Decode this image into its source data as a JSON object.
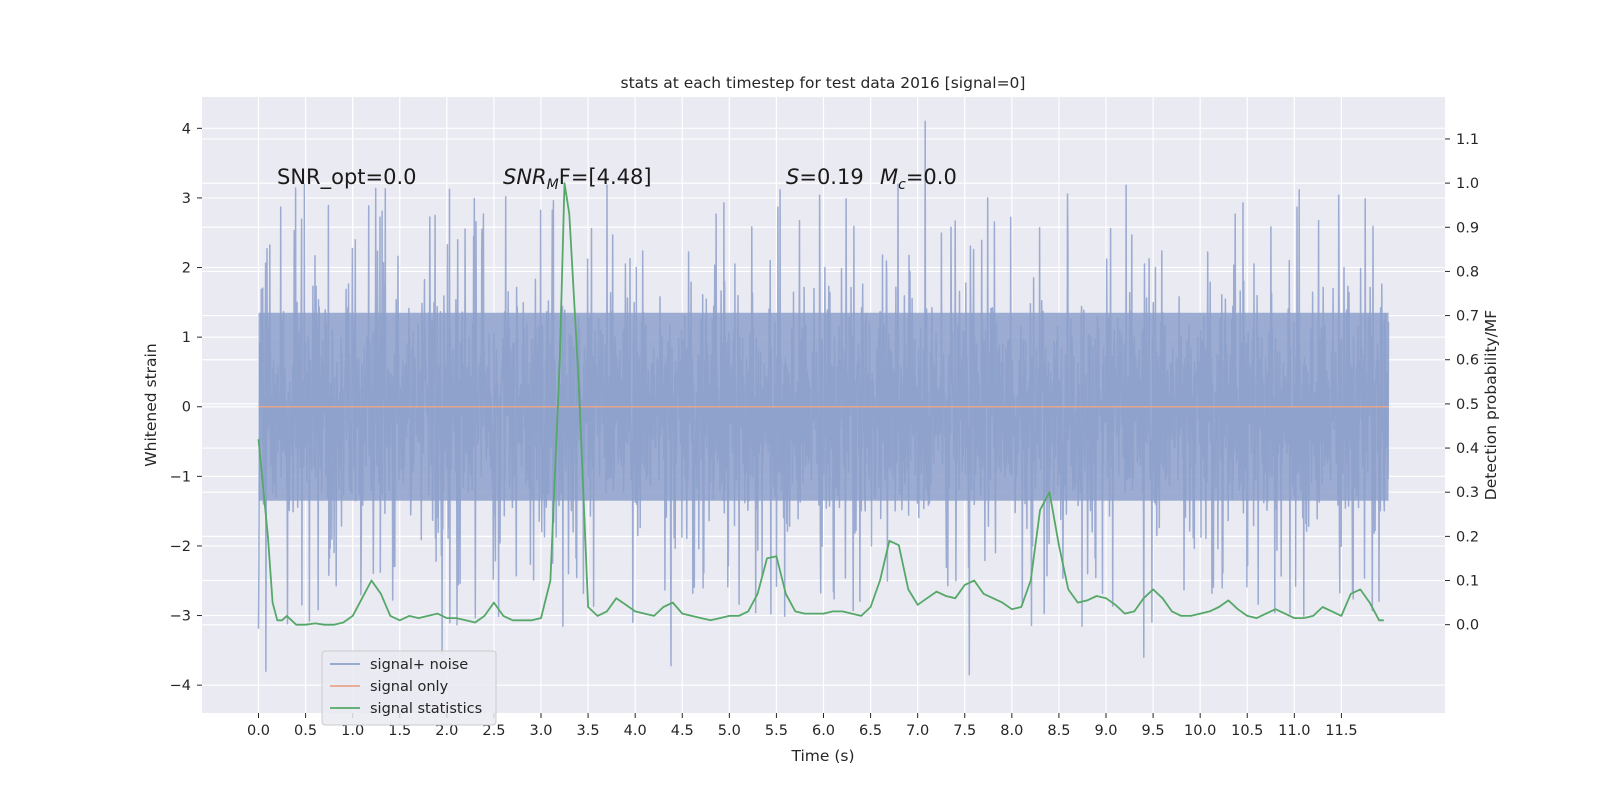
{
  "chart_data": {
    "type": "line",
    "title": "stats at each timestep for test data 2016 [signal=0]",
    "xlabel": "Time (s)",
    "ylabel": "Whitened strain",
    "y2label": "Detection probability/MF",
    "xlim": [
      -0.6,
      12.6
    ],
    "ylim": [
      -4.4,
      4.45
    ],
    "y2lim": [
      -0.2,
      1.195
    ],
    "x_ticks": [
      0.0,
      0.5,
      1.0,
      1.5,
      2.0,
      2.5,
      3.0,
      3.5,
      4.0,
      4.5,
      5.0,
      5.5,
      6.0,
      6.5,
      7.0,
      7.5,
      8.0,
      8.5,
      9.0,
      9.5,
      10.0,
      10.5,
      11.0,
      11.5
    ],
    "x_tick_labels": [
      "0.0",
      "0.5",
      "1.0",
      "1.5",
      "2.0",
      "2.5",
      "3.0",
      "3.5",
      "4.0",
      "4.5",
      "5.0",
      "5.5",
      "6.0",
      "6.5",
      "7.0",
      "7.5",
      "8.0",
      "8.5",
      "9.0",
      "9.5",
      "10.0",
      "10.5",
      "11.0",
      "11.5"
    ],
    "y_ticks": [
      -4,
      -3,
      -2,
      -1,
      0,
      1,
      2,
      3,
      4
    ],
    "y_tick_labels": [
      "−4",
      "−3",
      "−2",
      "−1",
      "0",
      "1",
      "2",
      "3",
      "4"
    ],
    "y2_ticks": [
      0.0,
      0.1,
      0.2,
      0.3,
      0.4,
      0.5,
      0.6,
      0.7,
      0.8,
      0.9,
      1.0,
      1.1
    ],
    "y2_tick_labels": [
      "0.0",
      "0.1",
      "0.2",
      "0.3",
      "0.4",
      "0.5",
      "0.6",
      "0.7",
      "0.8",
      "0.9",
      "1.0",
      "1.1"
    ],
    "grid": true,
    "legend_position": "lower-left",
    "annotations": {
      "snr_opt": "SNR_opt=0.0",
      "snr_mf_name": "SNR",
      "snr_mf_sub": "M",
      "snr_mf_rest": "F=[4.48]",
      "stat_name": "S",
      "stat_value": "=0.19",
      "mc_name": "M",
      "mc_sub": "c",
      "mc_value": "=0.0"
    },
    "series": [
      {
        "name": "signal+ noise",
        "axis": "left",
        "color": "#8da0cb",
        "x_range": [
          0.0,
          12.0
        ],
        "noise": {
          "core_half_width": 1.35,
          "upper_spikes_max": 4.1,
          "lower_spikes_min": -3.85,
          "notable_peaks": [
            [
              7.08,
              4.1
            ],
            [
              0.08,
              -3.8
            ],
            [
              7.55,
              -3.85
            ],
            [
              9.4,
              -3.6
            ],
            [
              4.38,
              -3.72
            ],
            [
              1.95,
              -3.55
            ]
          ]
        }
      },
      {
        "name": "signal only",
        "axis": "left",
        "color": "#e6a68a",
        "x": [
          0.0,
          12.0
        ],
        "values": [
          0.0,
          0.0
        ]
      },
      {
        "name": "signal statistics",
        "axis": "right",
        "color": "#55a868",
        "x": [
          0.0,
          0.1,
          0.15,
          0.2,
          0.25,
          0.3,
          0.35,
          0.4,
          0.5,
          0.6,
          0.7,
          0.8,
          0.9,
          1.0,
          1.1,
          1.2,
          1.3,
          1.4,
          1.5,
          1.6,
          1.7,
          1.8,
          1.9,
          2.0,
          2.1,
          2.2,
          2.3,
          2.4,
          2.5,
          2.6,
          2.7,
          2.8,
          2.9,
          3.0,
          3.1,
          3.2,
          3.25,
          3.3,
          3.4,
          3.5,
          3.6,
          3.7,
          3.8,
          3.9,
          4.0,
          4.1,
          4.2,
          4.3,
          4.4,
          4.5,
          4.6,
          4.7,
          4.8,
          4.9,
          5.0,
          5.1,
          5.2,
          5.3,
          5.4,
          5.5,
          5.6,
          5.7,
          5.8,
          5.9,
          6.0,
          6.1,
          6.2,
          6.3,
          6.4,
          6.5,
          6.6,
          6.7,
          6.8,
          6.9,
          7.0,
          7.1,
          7.2,
          7.3,
          7.4,
          7.5,
          7.6,
          7.7,
          7.8,
          7.9,
          8.0,
          8.1,
          8.2,
          8.3,
          8.4,
          8.5,
          8.6,
          8.7,
          8.8,
          8.9,
          9.0,
          9.1,
          9.2,
          9.3,
          9.4,
          9.5,
          9.6,
          9.7,
          9.8,
          9.9,
          10.0,
          10.1,
          10.2,
          10.3,
          10.4,
          10.5,
          10.6,
          10.7,
          10.8,
          10.9,
          11.0,
          11.1,
          11.2,
          11.3,
          11.4,
          11.5,
          11.6,
          11.7,
          11.8,
          11.9,
          11.95
        ],
        "values": [
          0.42,
          0.2,
          0.05,
          0.01,
          0.01,
          0.02,
          0.01,
          0.0,
          0.0,
          0.003,
          0.0,
          0.0,
          0.005,
          0.02,
          0.06,
          0.1,
          0.07,
          0.02,
          0.01,
          0.02,
          0.015,
          0.02,
          0.025,
          0.015,
          0.015,
          0.01,
          0.005,
          0.02,
          0.05,
          0.02,
          0.01,
          0.01,
          0.01,
          0.015,
          0.1,
          0.6,
          1.0,
          0.93,
          0.55,
          0.04,
          0.02,
          0.03,
          0.06,
          0.045,
          0.03,
          0.025,
          0.02,
          0.04,
          0.05,
          0.025,
          0.02,
          0.015,
          0.01,
          0.015,
          0.02,
          0.02,
          0.03,
          0.07,
          0.15,
          0.155,
          0.07,
          0.03,
          0.025,
          0.025,
          0.025,
          0.03,
          0.03,
          0.025,
          0.02,
          0.04,
          0.1,
          0.19,
          0.18,
          0.08,
          0.045,
          0.06,
          0.075,
          0.065,
          0.06,
          0.09,
          0.1,
          0.07,
          0.06,
          0.05,
          0.035,
          0.04,
          0.1,
          0.26,
          0.3,
          0.18,
          0.08,
          0.05,
          0.055,
          0.065,
          0.06,
          0.045,
          0.025,
          0.03,
          0.06,
          0.08,
          0.06,
          0.03,
          0.02,
          0.02,
          0.025,
          0.03,
          0.04,
          0.055,
          0.035,
          0.02,
          0.015,
          0.025,
          0.035,
          0.025,
          0.015,
          0.015,
          0.02,
          0.04,
          0.03,
          0.02,
          0.07,
          0.08,
          0.05,
          0.01,
          0.01
        ]
      }
    ]
  }
}
